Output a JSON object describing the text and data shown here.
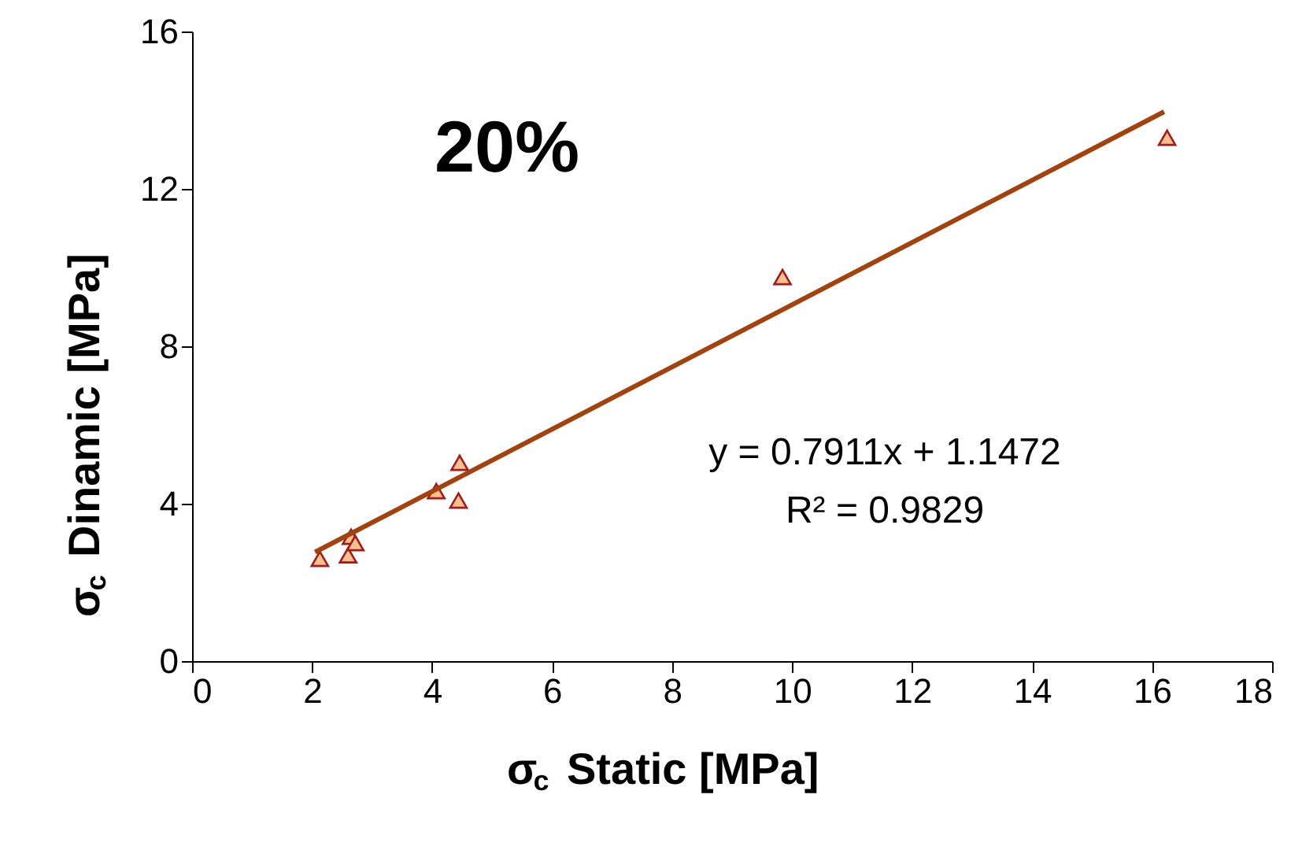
{
  "chart_data": {
    "type": "scatter",
    "xlabel": "σ$_{c}$ Static [MPa]",
    "ylabel": "σ$_{c}$ Dinamic [MPa]",
    "xlim": [
      0,
      18
    ],
    "xticks": [
      0,
      2,
      4,
      6,
      8,
      10,
      12,
      14,
      16,
      18
    ],
    "ylim": [
      0,
      16
    ],
    "yticks": [
      0,
      4,
      8,
      12,
      16
    ],
    "grid": false,
    "marker": "triangle",
    "series": [
      {
        "color": "#f9bf8f",
        "x": [
          2.13,
          2.6,
          2.65,
          2.72,
          4.07,
          4.44,
          4.46,
          9.84,
          16.25
        ],
        "values": [
          2.6,
          2.69,
          3.16,
          3.0,
          4.32,
          4.08,
          5.04,
          9.76,
          13.3
        ]
      },
      {
        "type": "line",
        "color": "#a3420c",
        "line_style": "solid",
        "marker": "none",
        "x": [
          2.05,
          16.2
        ],
        "values": [
          2.77,
          13.96
        ]
      }
    ],
    "annotations": [
      "20%",
      "y = 0.7911x + 1.1472",
      "R² = 0.9829"
    ]
  }
}
